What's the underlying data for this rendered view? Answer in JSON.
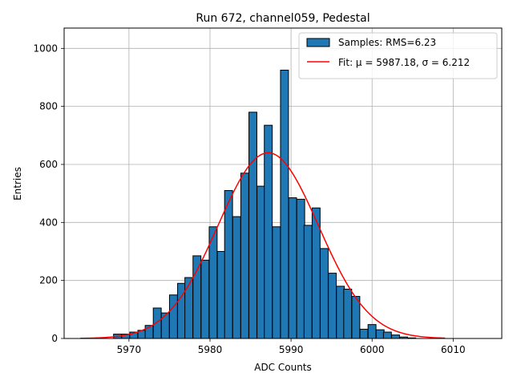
{
  "chart_data": {
    "type": "bar",
    "title": "Run 672, channel059, Pedestal",
    "xlabel": "ADC Counts",
    "ylabel": "Entries",
    "xlim": [
      5962,
      6016
    ],
    "ylim": [
      0,
      1070
    ],
    "xticks": [
      5970,
      5980,
      5990,
      6000,
      6010
    ],
    "yticks": [
      0,
      200,
      400,
      600,
      800,
      1000
    ],
    "grid": true,
    "legend_position": "top-right",
    "histogram": {
      "name": "Samples: RMS=6.23",
      "color": "#1f77b4",
      "bin_width": 0.98,
      "bin_starts": [
        5968.1,
        5969.1,
        5970.1,
        5971.1,
        5972.0,
        5973.0,
        5974.0,
        5975.0,
        5976.0,
        5976.9,
        5977.9,
        5978.9,
        5979.9,
        5980.9,
        5981.8,
        5982.8,
        5983.8,
        5984.8,
        5985.8,
        5986.7,
        5987.7,
        5988.7,
        5989.7,
        5990.7,
        5991.6,
        5992.6,
        5993.6,
        5994.6,
        5995.6,
        5996.5,
        5997.5,
        5998.5,
        5999.5,
        6000.5,
        6001.4,
        6002.4,
        6003.4,
        6004.4
      ],
      "counts": [
        15,
        15,
        22,
        28,
        45,
        105,
        88,
        150,
        190,
        210,
        285,
        270,
        385,
        300,
        510,
        420,
        570,
        780,
        525,
        735,
        385,
        925,
        485,
        480,
        390,
        450,
        310,
        225,
        180,
        170,
        145,
        32,
        48,
        30,
        22,
        12,
        5,
        2
      ]
    },
    "fit": {
      "name": "Fit: μ = 5987.18, σ = 6.212",
      "color": "#ff0000",
      "mu": 5987.18,
      "sigma": 6.212,
      "amplitude": 640,
      "x_range": [
        5964.0,
        6009.0
      ]
    }
  }
}
